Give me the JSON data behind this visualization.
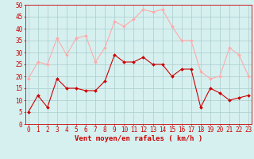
{
  "hours": [
    0,
    1,
    2,
    3,
    4,
    5,
    6,
    7,
    8,
    9,
    10,
    11,
    12,
    13,
    14,
    15,
    16,
    17,
    18,
    19,
    20,
    21,
    22,
    23
  ],
  "mean_wind": [
    5,
    12,
    7,
    19,
    15,
    15,
    14,
    14,
    18,
    29,
    26,
    26,
    28,
    25,
    25,
    20,
    23,
    23,
    7,
    15,
    13,
    10,
    11,
    12
  ],
  "gust_wind": [
    19,
    26,
    25,
    36,
    29,
    36,
    37,
    26,
    32,
    43,
    41,
    44,
    48,
    47,
    48,
    41,
    35,
    35,
    22,
    19,
    20,
    32,
    29,
    20
  ],
  "mean_color": "#cc0000",
  "gust_color": "#ffaaaa",
  "bg_color": "#d6f0f0",
  "grid_color": "#aacccc",
  "xlabel": "Vent moyen/en rafales ( km/h )",
  "ylim": [
    0,
    50
  ],
  "yticks": [
    0,
    5,
    10,
    15,
    20,
    25,
    30,
    35,
    40,
    45,
    50
  ],
  "axis_fontsize": 6.5,
  "tick_fontsize": 5.5
}
